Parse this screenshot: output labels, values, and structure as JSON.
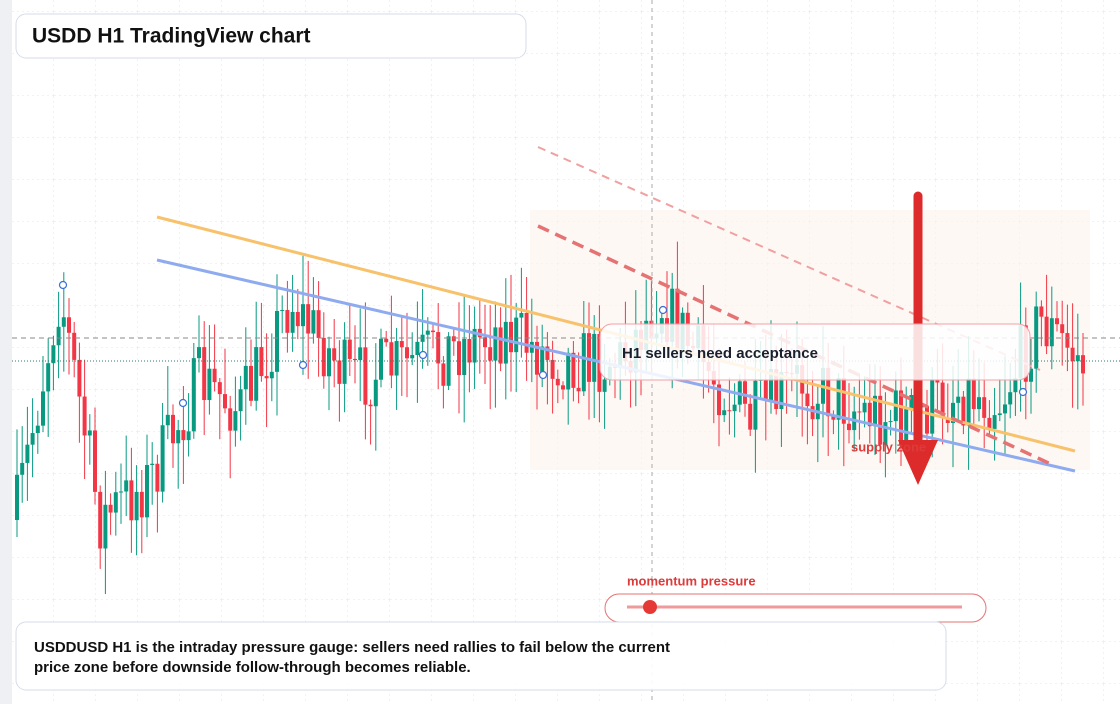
{
  "title": "USDD H1 TradingView chart",
  "annotation": "H1 sellers need acceptance",
  "zone_label": "supply zone",
  "gauge_label": "momentum pressure",
  "caption": [
    "USDDUSD H1 is the intraday pressure gauge: sellers need rallies to fail below the current",
    "price zone before downside follow-through becomes reliable."
  ]
}
